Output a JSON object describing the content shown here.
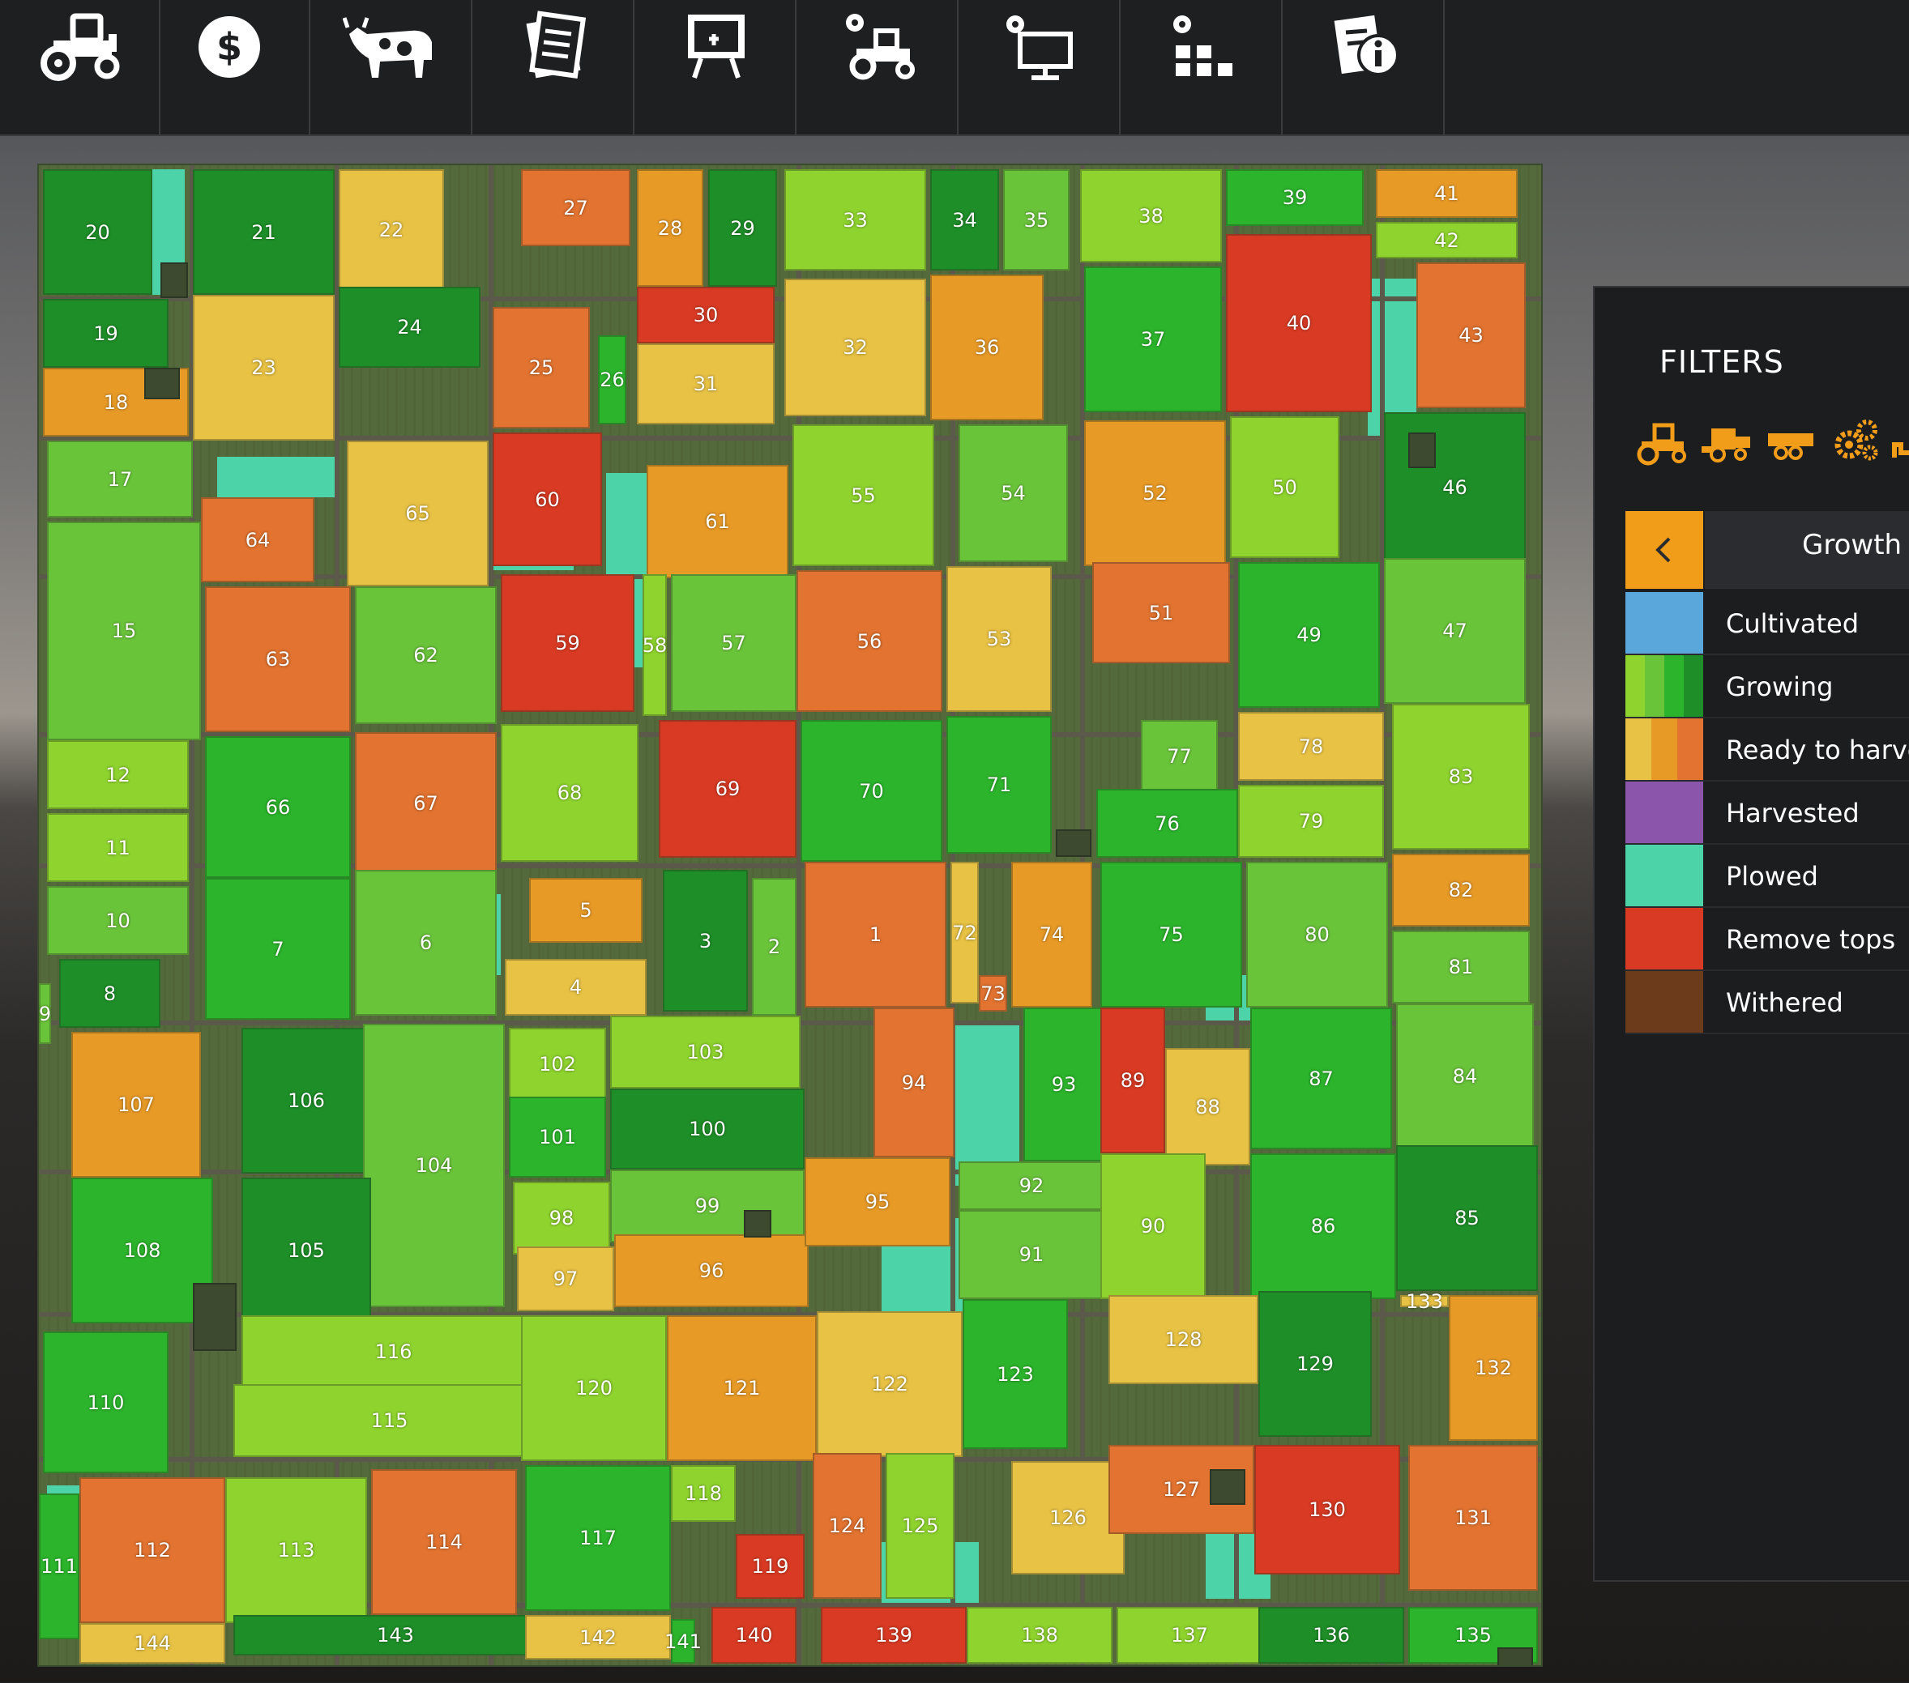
{
  "toolbar": {
    "tabs": [
      {
        "name": "tractor-icon"
      },
      {
        "name": "dollar-icon"
      },
      {
        "name": "cow-icon"
      },
      {
        "name": "contracts-icon"
      },
      {
        "name": "presentation-icon"
      },
      {
        "name": "tractor-settings-icon"
      },
      {
        "name": "monitor-settings-icon"
      },
      {
        "name": "production-icon"
      },
      {
        "name": "info-document-icon"
      }
    ]
  },
  "colors": {
    "growing_1": "#2cb52c",
    "growing_2": "#1e8f28",
    "growing_3": "#6ac43a",
    "growing_4": "#8fd42e",
    "ready_yellow": "#e8c244",
    "ready_orange": "#e89a26",
    "ready_dark_orange": "#e27330",
    "remove_tops": "#d93a23",
    "plowed": "#4cd3a8",
    "cultivated": "#5aa7dc",
    "harvested": "#8a55aa",
    "withered": "#6c3b1c",
    "accent": "#f29d1a"
  },
  "filters": {
    "title": "FILTERS",
    "icons": [
      "tractor-icon",
      "harvester-icon",
      "trailer-icon",
      "gears-icon",
      "arrow-icon"
    ],
    "category": "Growth",
    "legend": [
      {
        "label": "Cultivated",
        "colors": [
          "#5aa7dc"
        ]
      },
      {
        "label": "Growing",
        "colors": [
          "#8fd42e",
          "#6ac43a",
          "#2cb52c",
          "#1e8f28"
        ]
      },
      {
        "label": "Ready to harvest",
        "colors": [
          "#e8c244",
          "#e89a26",
          "#e27330"
        ]
      },
      {
        "label": "Harvested",
        "colors": [
          "#8a55aa"
        ]
      },
      {
        "label": "Plowed",
        "colors": [
          "#4cd3a8"
        ]
      },
      {
        "label": "Remove tops",
        "colors": [
          "#d93a23"
        ]
      },
      {
        "label": "Withered",
        "colors": [
          "#6c3b1c"
        ]
      }
    ]
  },
  "map": {
    "fields": [
      {
        "id": "20",
        "state": "g2"
      },
      {
        "id": "21",
        "state": "g2"
      },
      {
        "id": "22",
        "state": "y"
      },
      {
        "id": "27",
        "state": "do"
      },
      {
        "id": "28",
        "state": "o"
      },
      {
        "id": "29",
        "state": "g2"
      },
      {
        "id": "33",
        "state": "g4"
      },
      {
        "id": "34",
        "state": "g2"
      },
      {
        "id": "35",
        "state": "g3"
      },
      {
        "id": "38",
        "state": "g4"
      },
      {
        "id": "39",
        "state": "g1"
      },
      {
        "id": "41",
        "state": "o"
      },
      {
        "id": "42",
        "state": "g4"
      },
      {
        "id": "19",
        "state": "g2"
      },
      {
        "id": "23",
        "state": "y"
      },
      {
        "id": "24",
        "state": "g2"
      },
      {
        "id": "25",
        "state": "do"
      },
      {
        "id": "26",
        "state": "g1"
      },
      {
        "id": "30",
        "state": "r"
      },
      {
        "id": "31",
        "state": "y"
      },
      {
        "id": "32",
        "state": "y"
      },
      {
        "id": "36",
        "state": "o"
      },
      {
        "id": "37",
        "state": "g1"
      },
      {
        "id": "40",
        "state": "r"
      },
      {
        "id": "43",
        "state": "do"
      },
      {
        "id": "18",
        "state": "o"
      },
      {
        "id": "17",
        "state": "g3"
      },
      {
        "id": "64",
        "state": "do"
      },
      {
        "id": "65",
        "state": "y"
      },
      {
        "id": "60",
        "state": "r"
      },
      {
        "id": "61",
        "state": "o"
      },
      {
        "id": "55",
        "state": "g4"
      },
      {
        "id": "54",
        "state": "g3"
      },
      {
        "id": "52",
        "state": "o"
      },
      {
        "id": "50",
        "state": "g4"
      },
      {
        "id": "46",
        "state": "g2"
      },
      {
        "id": "15",
        "state": "g3"
      },
      {
        "id": "63",
        "state": "do"
      },
      {
        "id": "62",
        "state": "g3"
      },
      {
        "id": "59",
        "state": "r"
      },
      {
        "id": "58",
        "state": "g4"
      },
      {
        "id": "57",
        "state": "g3"
      },
      {
        "id": "56",
        "state": "do"
      },
      {
        "id": "53",
        "state": "y"
      },
      {
        "id": "51",
        "state": "do"
      },
      {
        "id": "49",
        "state": "g1"
      },
      {
        "id": "47",
        "state": "g3"
      },
      {
        "id": "12",
        "state": "g4"
      },
      {
        "id": "11",
        "state": "g4"
      },
      {
        "id": "66",
        "state": "g1"
      },
      {
        "id": "67",
        "state": "do"
      },
      {
        "id": "68",
        "state": "g4"
      },
      {
        "id": "69",
        "state": "r"
      },
      {
        "id": "70",
        "state": "g1"
      },
      {
        "id": "71",
        "state": "g1"
      },
      {
        "id": "77",
        "state": "g3"
      },
      {
        "id": "78",
        "state": "y"
      },
      {
        "id": "76",
        "state": "g1"
      },
      {
        "id": "79",
        "state": "g4"
      },
      {
        "id": "83",
        "state": "g4"
      },
      {
        "id": "10",
        "state": "g3"
      },
      {
        "id": "9",
        "state": "g3"
      },
      {
        "id": "8",
        "state": "g2"
      },
      {
        "id": "7",
        "state": "g1"
      },
      {
        "id": "6",
        "state": "g3"
      },
      {
        "id": "5",
        "state": "o"
      },
      {
        "id": "4",
        "state": "y"
      },
      {
        "id": "3",
        "state": "g2"
      },
      {
        "id": "2",
        "state": "g3"
      },
      {
        "id": "1",
        "state": "do"
      },
      {
        "id": "72",
        "state": "y"
      },
      {
        "id": "73",
        "state": "do"
      },
      {
        "id": "74",
        "state": "o"
      },
      {
        "id": "75",
        "state": "g1"
      },
      {
        "id": "80",
        "state": "g3"
      },
      {
        "id": "82",
        "state": "o"
      },
      {
        "id": "81",
        "state": "g3"
      },
      {
        "id": "107",
        "state": "o"
      },
      {
        "id": "106",
        "state": "g2"
      },
      {
        "id": "104",
        "state": "g3"
      },
      {
        "id": "102",
        "state": "g4"
      },
      {
        "id": "103",
        "state": "g4"
      },
      {
        "id": "101",
        "state": "g1"
      },
      {
        "id": "100",
        "state": "g2"
      },
      {
        "id": "94",
        "state": "do"
      },
      {
        "id": "93",
        "state": "g1"
      },
      {
        "id": "89",
        "state": "r"
      },
      {
        "id": "88",
        "state": "y"
      },
      {
        "id": "87",
        "state": "g1"
      },
      {
        "id": "84",
        "state": "g3"
      },
      {
        "id": "108",
        "state": "g1"
      },
      {
        "id": "105",
        "state": "g2"
      },
      {
        "id": "98",
        "state": "g4"
      },
      {
        "id": "99",
        "state": "g3"
      },
      {
        "id": "97",
        "state": "y"
      },
      {
        "id": "96",
        "state": "o"
      },
      {
        "id": "95",
        "state": "o"
      },
      {
        "id": "92",
        "state": "g3"
      },
      {
        "id": "91",
        "state": "g3"
      },
      {
        "id": "90",
        "state": "g4"
      },
      {
        "id": "86",
        "state": "g1"
      },
      {
        "id": "85",
        "state": "g2"
      },
      {
        "id": "110",
        "state": "g1"
      },
      {
        "id": "116",
        "state": "g4"
      },
      {
        "id": "115",
        "state": "g4"
      },
      {
        "id": "120",
        "state": "g4"
      },
      {
        "id": "121",
        "state": "o"
      },
      {
        "id": "122",
        "state": "y"
      },
      {
        "id": "123",
        "state": "g1"
      },
      {
        "id": "128",
        "state": "y"
      },
      {
        "id": "129",
        "state": "g2"
      },
      {
        "id": "133",
        "state": "y"
      },
      {
        "id": "132",
        "state": "o"
      },
      {
        "id": "111",
        "state": "g1"
      },
      {
        "id": "112",
        "state": "do"
      },
      {
        "id": "113",
        "state": "g4"
      },
      {
        "id": "114",
        "state": "do"
      },
      {
        "id": "117",
        "state": "g1"
      },
      {
        "id": "118",
        "state": "g4"
      },
      {
        "id": "119",
        "state": "r"
      },
      {
        "id": "124",
        "state": "do"
      },
      {
        "id": "125",
        "state": "g4"
      },
      {
        "id": "126",
        "state": "y"
      },
      {
        "id": "127",
        "state": "do"
      },
      {
        "id": "130",
        "state": "r"
      },
      {
        "id": "131",
        "state": "do"
      },
      {
        "id": "144",
        "state": "y"
      },
      {
        "id": "143",
        "state": "g2"
      },
      {
        "id": "142",
        "state": "y"
      },
      {
        "id": "141",
        "state": "g1"
      },
      {
        "id": "140",
        "state": "r"
      },
      {
        "id": "139",
        "state": "r"
      },
      {
        "id": "138",
        "state": "g4"
      },
      {
        "id": "137",
        "state": "g4"
      },
      {
        "id": "136",
        "state": "g2"
      },
      {
        "id": "135",
        "state": "g1"
      }
    ]
  }
}
